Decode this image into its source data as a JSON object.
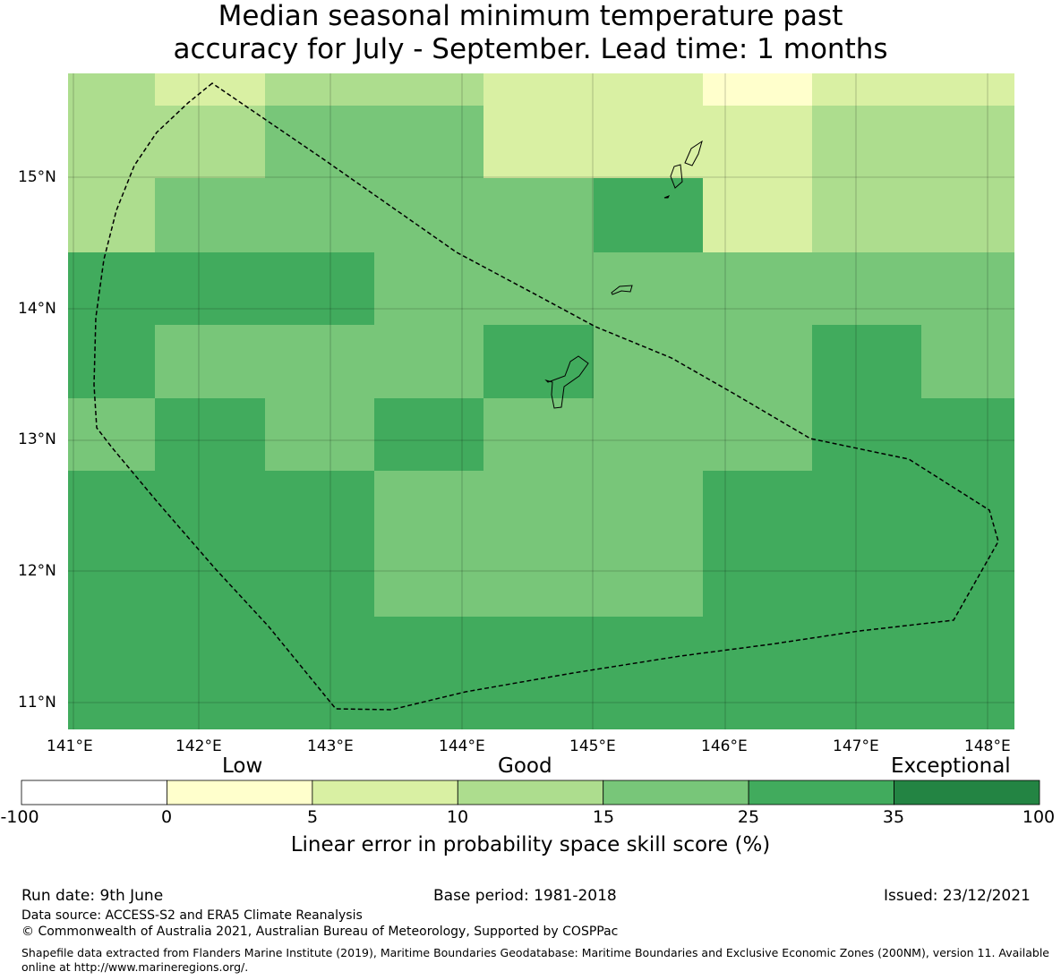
{
  "title": {
    "line1": "Median seasonal minimum temperature past",
    "line2": "accuracy for July - September. Lead time: 1 months"
  },
  "map": {
    "lon_labels": [
      "141°E",
      "142°E",
      "143°E",
      "144°E",
      "145°E",
      "146°E",
      "147°E",
      "148°E"
    ],
    "lat_labels": [
      "15°N",
      "14°N",
      "13°N",
      "12°N",
      "11°N"
    ],
    "lon_range": [
      141.0,
      148.2
    ],
    "lat_range": [
      10.8,
      15.8
    ],
    "grid_cols": 9,
    "grid_rows": 9,
    "skill_category_grid": [
      [
        3,
        2,
        3,
        3,
        2,
        2,
        1,
        2,
        2
      ],
      [
        3,
        3,
        4,
        4,
        2,
        2,
        2,
        3,
        3
      ],
      [
        3,
        4,
        4,
        4,
        4,
        5,
        2,
        3,
        3
      ],
      [
        5,
        5,
        5,
        4,
        4,
        4,
        4,
        4,
        4
      ],
      [
        5,
        4,
        4,
        4,
        5,
        4,
        4,
        5,
        4
      ],
      [
        4,
        5,
        4,
        5,
        4,
        4,
        4,
        5,
        5
      ],
      [
        5,
        5,
        5,
        4,
        4,
        4,
        5,
        5,
        5
      ],
      [
        5,
        5,
        5,
        4,
        4,
        4,
        5,
        5,
        5
      ],
      [
        5,
        5,
        5,
        5,
        5,
        5,
        5,
        5,
        5
      ]
    ]
  },
  "colorbar": {
    "category_labels": [
      "Low",
      "Good",
      "Exceptional"
    ],
    "ticks": [
      "-100",
      "0",
      "5",
      "10",
      "15",
      "25",
      "35",
      "100"
    ],
    "colors": [
      "#ffffff",
      "#ffffcc",
      "#d9f0a3",
      "#addd8e",
      "#78c679",
      "#41ab5d",
      "#238443"
    ],
    "title": "Linear error in probability space skill score (%)"
  },
  "footer": {
    "run_date": "Run date: 9th June",
    "base_period": "Base period: 1981-2018",
    "issued": "Issued: 23/12/2021",
    "data_source": "Data source: ACCESS-S2 and ERA5 Climate Reanalysis",
    "copyright": "© Commonwealth of Australia 2021, Australian Bureau of Meteorology, Supported by COSPPac",
    "shapefile_note": "Shapefile data extracted from Flanders Marine Institute (2019), Maritime Boundaries Geodatabase: Maritime Boundaries and Exclusive Economic Zones (200NM), version 11. Available online at http://www.marineregions.org/."
  }
}
